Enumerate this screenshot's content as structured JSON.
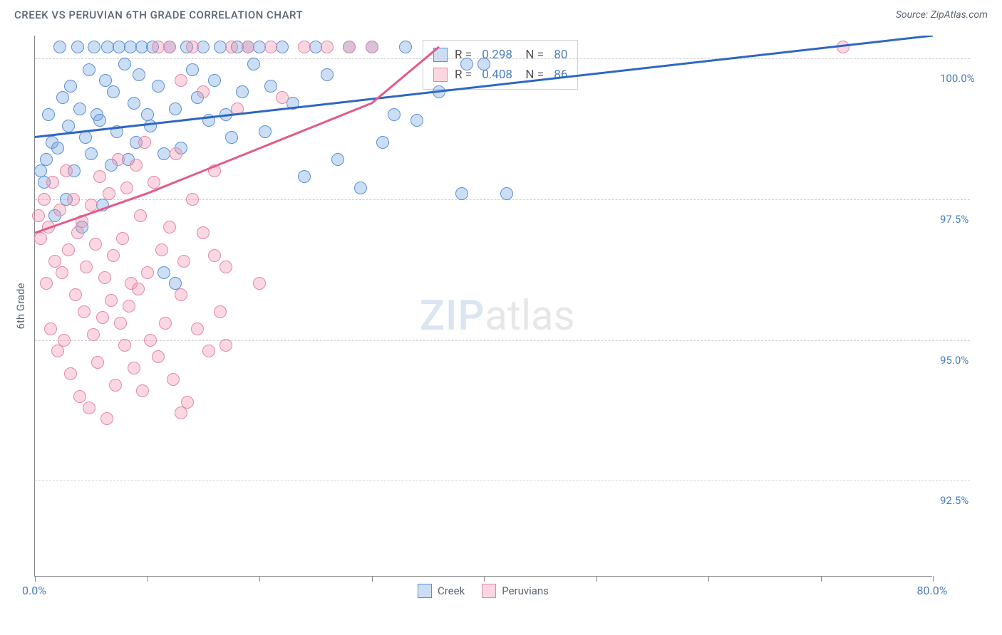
{
  "header": {
    "title": "CREEK VS PERUVIAN 6TH GRADE CORRELATION CHART",
    "source": "Source: ZipAtlas.com"
  },
  "watermark": {
    "left": "ZIP",
    "right": "atlas"
  },
  "chart": {
    "type": "scatter",
    "ylabel": "6th Grade",
    "xlim": [
      0,
      80
    ],
    "ylim": [
      90.8,
      100.4
    ],
    "ytick_vals": [
      92.5,
      95.0,
      97.5,
      100.0
    ],
    "ytick_labels": [
      "92.5%",
      "95.0%",
      "97.5%",
      "100.0%"
    ],
    "xtick_vals": [
      0,
      10,
      20,
      30,
      40,
      50,
      60,
      70,
      80
    ],
    "xtick_labels": {
      "0": "0.0%",
      "80": "80.0%"
    },
    "grid_color": "#d0d0d0",
    "background_color": "#ffffff",
    "marker_radius": 9,
    "marker_border_width": 1.5,
    "trend_line_width": 3,
    "series": [
      {
        "name": "Creek",
        "fill_color": "rgba(110,160,220,0.35)",
        "stroke_color": "#5a8fd6",
        "trend_color": "#2f66c4",
        "R": 0.298,
        "N": 80,
        "trend": [
          [
            0,
            98.6
          ],
          [
            80,
            100.4
          ]
        ],
        "points": [
          [
            0.5,
            98.0
          ],
          [
            0.8,
            97.8
          ],
          [
            1.0,
            98.2
          ],
          [
            1.2,
            99.0
          ],
          [
            1.5,
            98.5
          ],
          [
            1.8,
            97.2
          ],
          [
            2.0,
            98.4
          ],
          [
            2.2,
            100.2
          ],
          [
            2.5,
            99.3
          ],
          [
            2.8,
            97.5
          ],
          [
            3.0,
            98.8
          ],
          [
            3.2,
            99.5
          ],
          [
            3.5,
            98.0
          ],
          [
            3.8,
            100.2
          ],
          [
            4.0,
            99.1
          ],
          [
            4.2,
            97.0
          ],
          [
            4.5,
            98.6
          ],
          [
            4.8,
            99.8
          ],
          [
            5.0,
            98.3
          ],
          [
            5.3,
            100.2
          ],
          [
            5.5,
            99.0
          ],
          [
            5.8,
            98.9
          ],
          [
            6.0,
            97.4
          ],
          [
            6.3,
            99.6
          ],
          [
            6.5,
            100.2
          ],
          [
            6.8,
            98.1
          ],
          [
            7.0,
            99.4
          ],
          [
            7.3,
            98.7
          ],
          [
            7.5,
            100.2
          ],
          [
            8.0,
            99.9
          ],
          [
            8.3,
            98.2
          ],
          [
            8.5,
            100.2
          ],
          [
            8.8,
            99.2
          ],
          [
            9.0,
            98.5
          ],
          [
            9.3,
            99.7
          ],
          [
            9.5,
            100.2
          ],
          [
            10.0,
            99.0
          ],
          [
            10.3,
            98.8
          ],
          [
            10.5,
            100.2
          ],
          [
            11.0,
            99.5
          ],
          [
            11.5,
            98.3
          ],
          [
            12.0,
            100.2
          ],
          [
            12.5,
            99.1
          ],
          [
            13.0,
            98.4
          ],
          [
            13.5,
            100.2
          ],
          [
            14.0,
            99.8
          ],
          [
            14.5,
            99.3
          ],
          [
            15.0,
            100.2
          ],
          [
            15.5,
            98.9
          ],
          [
            16.0,
            99.6
          ],
          [
            16.5,
            100.2
          ],
          [
            17.0,
            99.0
          ],
          [
            17.5,
            98.6
          ],
          [
            18.0,
            100.2
          ],
          [
            18.5,
            99.4
          ],
          [
            19.0,
            100.2
          ],
          [
            19.5,
            99.9
          ],
          [
            20.0,
            100.2
          ],
          [
            20.5,
            98.7
          ],
          [
            21.0,
            99.5
          ],
          [
            22.0,
            100.2
          ],
          [
            23.0,
            99.2
          ],
          [
            24.0,
            97.9
          ],
          [
            25.0,
            100.2
          ],
          [
            26.0,
            99.7
          ],
          [
            27.0,
            98.2
          ],
          [
            28.0,
            100.2
          ],
          [
            29.0,
            97.7
          ],
          [
            30.0,
            100.2
          ],
          [
            31.0,
            98.5
          ],
          [
            32.0,
            99.0
          ],
          [
            33.0,
            100.2
          ],
          [
            34.0,
            98.9
          ],
          [
            36.0,
            99.4
          ],
          [
            38.0,
            97.6
          ],
          [
            40.0,
            99.9
          ],
          [
            42.0,
            97.6
          ],
          [
            38.5,
            99.9
          ],
          [
            11.5,
            96.2
          ],
          [
            12.5,
            96.0
          ]
        ]
      },
      {
        "name": "Peruvians",
        "fill_color": "rgba(240,140,170,0.35)",
        "stroke_color": "#e388a8",
        "trend_color": "#e35a8a",
        "R": 0.408,
        "N": 86,
        "trend_curve": [
          [
            0,
            96.9
          ],
          [
            10,
            97.6
          ],
          [
            20,
            98.4
          ],
          [
            30,
            99.2
          ],
          [
            36,
            100.2
          ]
        ],
        "points": [
          [
            0.3,
            97.2
          ],
          [
            0.5,
            96.8
          ],
          [
            0.8,
            97.5
          ],
          [
            1.0,
            96.0
          ],
          [
            1.2,
            97.0
          ],
          [
            1.4,
            95.2
          ],
          [
            1.6,
            97.8
          ],
          [
            1.8,
            96.4
          ],
          [
            2.0,
            94.8
          ],
          [
            2.2,
            97.3
          ],
          [
            2.4,
            96.2
          ],
          [
            2.6,
            95.0
          ],
          [
            2.8,
            98.0
          ],
          [
            3.0,
            96.6
          ],
          [
            3.2,
            94.4
          ],
          [
            3.4,
            97.5
          ],
          [
            3.6,
            95.8
          ],
          [
            3.8,
            96.9
          ],
          [
            4.0,
            94.0
          ],
          [
            4.2,
            97.1
          ],
          [
            4.4,
            95.5
          ],
          [
            4.6,
            96.3
          ],
          [
            4.8,
            93.8
          ],
          [
            5.0,
            97.4
          ],
          [
            5.2,
            95.1
          ],
          [
            5.4,
            96.7
          ],
          [
            5.6,
            94.6
          ],
          [
            5.8,
            97.9
          ],
          [
            6.0,
            95.4
          ],
          [
            6.2,
            96.1
          ],
          [
            6.4,
            93.6
          ],
          [
            6.6,
            97.6
          ],
          [
            6.8,
            95.7
          ],
          [
            7.0,
            96.5
          ],
          [
            7.2,
            94.2
          ],
          [
            7.4,
            98.2
          ],
          [
            7.6,
            95.3
          ],
          [
            7.8,
            96.8
          ],
          [
            8.0,
            94.9
          ],
          [
            8.2,
            97.7
          ],
          [
            8.4,
            95.6
          ],
          [
            8.6,
            96.0
          ],
          [
            8.8,
            94.5
          ],
          [
            9.0,
            98.1
          ],
          [
            9.2,
            95.9
          ],
          [
            9.4,
            97.2
          ],
          [
            9.6,
            94.1
          ],
          [
            9.8,
            98.5
          ],
          [
            10.0,
            96.2
          ],
          [
            10.3,
            95.0
          ],
          [
            10.6,
            97.8
          ],
          [
            11.0,
            94.7
          ],
          [
            11.3,
            96.6
          ],
          [
            11.6,
            95.3
          ],
          [
            12.0,
            97.0
          ],
          [
            12.3,
            94.3
          ],
          [
            12.6,
            98.3
          ],
          [
            13.0,
            95.8
          ],
          [
            13.3,
            96.4
          ],
          [
            13.6,
            93.9
          ],
          [
            14.0,
            97.5
          ],
          [
            14.5,
            95.2
          ],
          [
            15.0,
            96.9
          ],
          [
            15.5,
            94.8
          ],
          [
            16.0,
            98.0
          ],
          [
            16.5,
            95.5
          ],
          [
            17.0,
            96.3
          ],
          [
            11.0,
            100.2
          ],
          [
            12.0,
            100.2
          ],
          [
            13.0,
            99.6
          ],
          [
            14.0,
            100.2
          ],
          [
            15.0,
            99.4
          ],
          [
            16.0,
            96.5
          ],
          [
            17.0,
            94.9
          ],
          [
            17.5,
            100.2
          ],
          [
            18.0,
            99.1
          ],
          [
            19.0,
            100.2
          ],
          [
            20.0,
            96.0
          ],
          [
            21.0,
            100.2
          ],
          [
            22.0,
            99.3
          ],
          [
            24.0,
            100.2
          ],
          [
            26.0,
            100.2
          ],
          [
            28.0,
            100.2
          ],
          [
            30.0,
            100.2
          ],
          [
            13.0,
            93.7
          ],
          [
            72.0,
            100.2
          ]
        ]
      }
    ],
    "legend": [
      {
        "label": "Creek",
        "fill": "rgba(110,160,220,0.35)",
        "stroke": "#5a8fd6"
      },
      {
        "label": "Peruvians",
        "fill": "rgba(240,140,170,0.35)",
        "stroke": "#e388a8"
      }
    ]
  }
}
